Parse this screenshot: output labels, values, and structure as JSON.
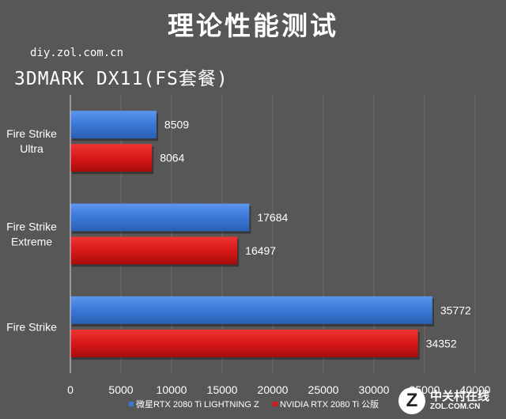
{
  "header": {
    "title": "理论性能测试",
    "watermark": "diy.zol.com.cn",
    "subtitle": "3DMARK DX11(FS套餐)"
  },
  "brand": {
    "mark": "Z",
    "name_cn": "中关村在线",
    "name_en": "ZOL.COM.CN"
  },
  "chart_data": {
    "type": "bar",
    "orientation": "horizontal",
    "categories": [
      "Fire Strike Ultra",
      "Fire Strike Extreme",
      "Fire Strike"
    ],
    "category_lines": [
      [
        "Fire Strike",
        "Ultra"
      ],
      [
        "Fire Strike",
        "Extreme"
      ],
      [
        "Fire Strike"
      ]
    ],
    "series": [
      {
        "name": "微星RTX 2080 Ti LIGHTNING Z",
        "color": "#3a78d6",
        "values": [
          8509,
          17684,
          35772
        ]
      },
      {
        "name": "NVIDIA RTX 2080 Ti 公版",
        "color": "#d81818",
        "values": [
          8064,
          16497,
          34352
        ]
      }
    ],
    "xlim": [
      0,
      40000
    ],
    "xticks": [
      0,
      5000,
      10000,
      15000,
      20000,
      25000,
      30000,
      35000,
      40000
    ],
    "grid": true,
    "legend_position": "bottom",
    "title": "3DMARK DX11(FS套餐)"
  }
}
